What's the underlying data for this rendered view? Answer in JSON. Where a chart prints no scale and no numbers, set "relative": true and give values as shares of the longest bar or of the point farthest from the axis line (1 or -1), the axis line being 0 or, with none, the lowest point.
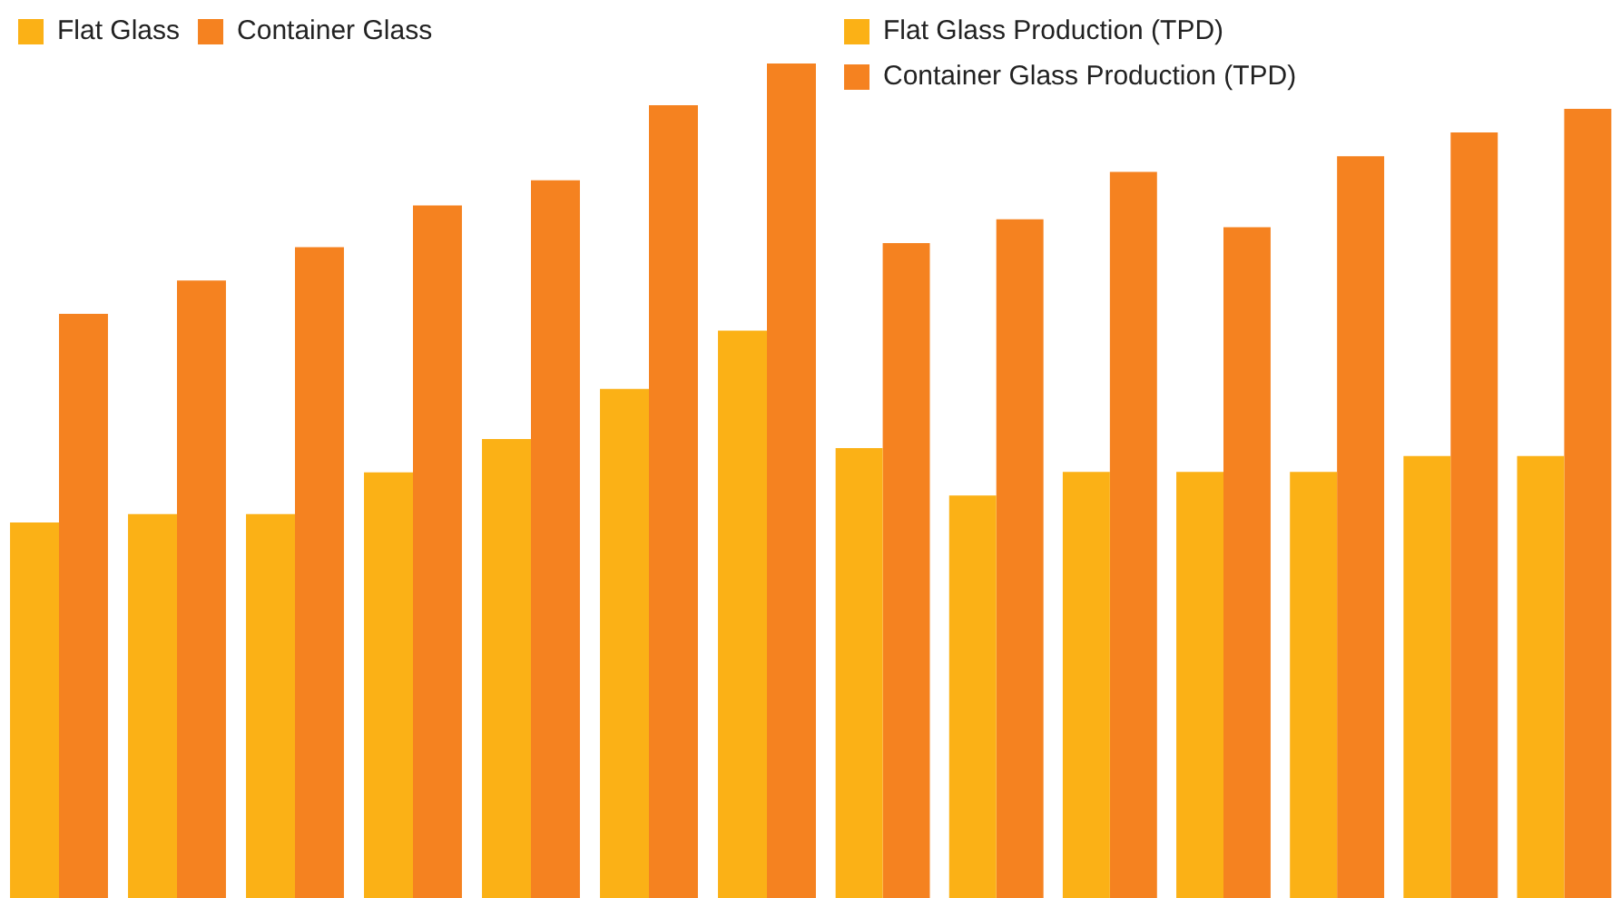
{
  "chart_data": [
    {
      "type": "bar",
      "relative": true,
      "legend": "top left",
      "categories": [
        null,
        null,
        null,
        null,
        null,
        null,
        null
      ],
      "series": [
        {
          "name": "Flat Glass",
          "color": "#fbb116",
          "values": [
            0.45,
            0.46,
            0.46,
            0.51,
            0.55,
            0.61,
            0.68
          ]
        },
        {
          "name": "Container Glass",
          "color": "#f58220",
          "values": [
            0.7,
            0.74,
            0.78,
            0.83,
            0.86,
            0.95,
            1
          ]
        }
      ]
    },
    {
      "type": "bar",
      "relative": true,
      "legend": "top left",
      "categories": [
        null,
        null,
        null,
        null,
        null,
        null,
        null
      ],
      "series": [
        {
          "name": "Flat Glass Production (TPD)",
          "color": "#fbb116",
          "values": [
            0.57,
            0.51,
            0.54,
            0.54,
            0.54,
            0.56,
            0.56
          ]
        },
        {
          "name": "Container Glass Production (TPD)",
          "color": "#f58220",
          "values": [
            0.83,
            0.86,
            0.92,
            0.85,
            0.94,
            0.97,
            1
          ]
        }
      ]
    }
  ]
}
